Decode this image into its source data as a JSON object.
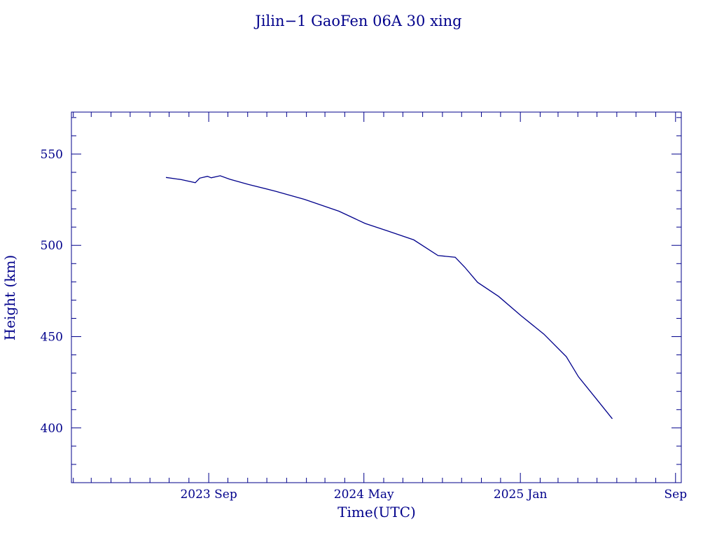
{
  "chart_data": {
    "type": "line",
    "title": "Jilin−1 GaoFen 06A 30 xing",
    "xlabel": "Time(UTC)",
    "ylabel": "Height (km)",
    "color": "#00008b",
    "x_tick_labels": [
      "2023 Sep",
      "2024 May",
      "2025 Jan",
      "Sep"
    ],
    "y_ticks": [
      400,
      450,
      500,
      550
    ],
    "ylim": [
      370,
      573
    ],
    "xlim": [
      "2023-01-29",
      "2025-09-10"
    ],
    "x_ticks": [
      "2023-09-01",
      "2024-05-01",
      "2025-01-01",
      "2025-09-01"
    ],
    "grid": false,
    "series": [
      {
        "x": [
          "2023-06-26",
          "2023-07-20",
          "2023-08-11",
          "2023-08-18",
          "2023-08-30",
          "2023-09-05",
          "2023-09-19",
          "2023-10-04",
          "2023-11-02",
          "2023-12-15",
          "2024-01-29",
          "2024-03-23",
          "2024-05-03",
          "2024-06-07",
          "2024-07-18",
          "2024-08-25",
          "2024-09-21",
          "2024-10-06",
          "2024-10-26",
          "2024-11-28",
          "2025-01-02",
          "2025-02-07",
          "2025-03-14",
          "2025-04-02",
          "2025-04-29",
          "2025-05-25"
        ],
        "values": [
          537.2,
          536,
          534.3,
          536.8,
          537.8,
          537,
          538.1,
          536.2,
          533.4,
          529.6,
          525.2,
          518.7,
          512,
          507.9,
          503,
          494.4,
          493.5,
          488,
          479.7,
          472,
          461.5,
          451.3,
          439,
          428,
          416.3,
          405
        ]
      }
    ]
  }
}
